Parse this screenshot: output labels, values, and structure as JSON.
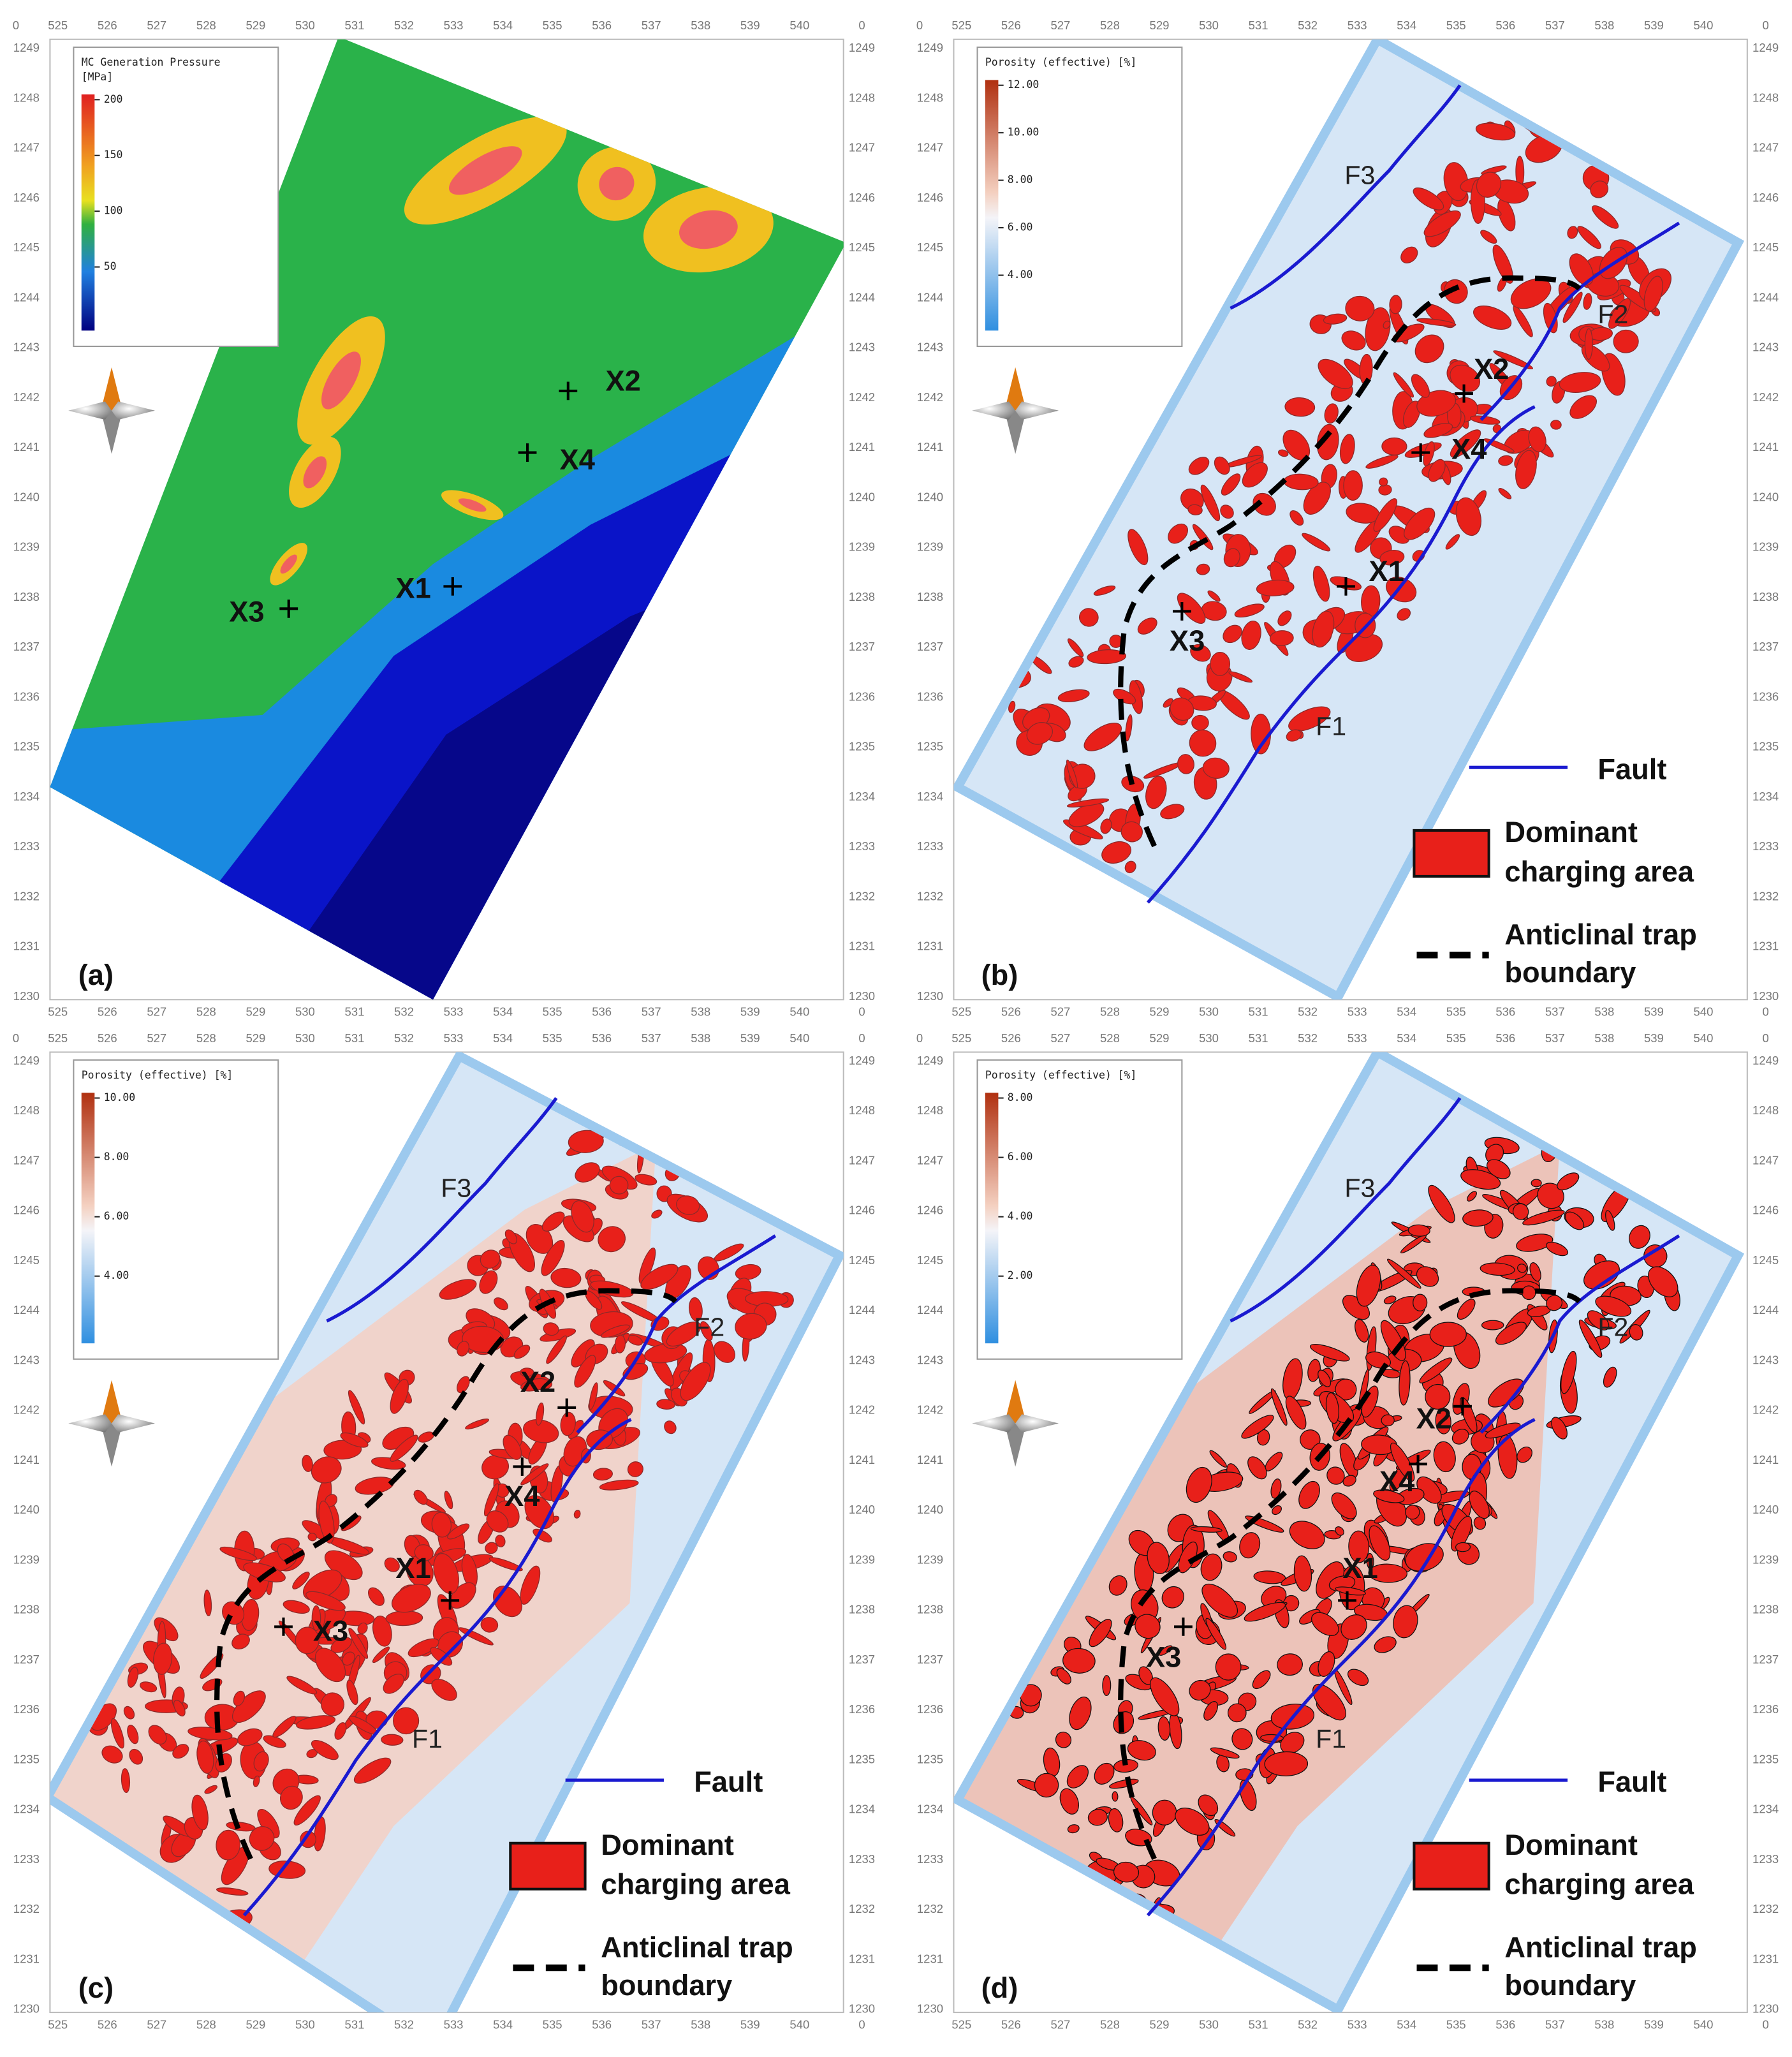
{
  "axes": {
    "x_ticks": [
      525,
      526,
      527,
      528,
      529,
      530,
      531,
      532,
      533,
      534,
      535,
      536,
      537,
      538,
      539,
      540
    ],
    "y_ticks": [
      1249,
      1248,
      1247,
      1246,
      1245,
      1244,
      1243,
      1242,
      1241,
      1240,
      1239,
      1238,
      1237,
      1236,
      1235,
      1234,
      1233,
      1232,
      1231,
      1230
    ],
    "corner_label": "0"
  },
  "legend": {
    "fault": "Fault",
    "charging_lines": [
      "Dominant",
      "charging area"
    ],
    "trap_lines": [
      "Anticlinal trap",
      "boundary"
    ]
  },
  "panels": [
    {
      "label": "(a)",
      "colorbar": {
        "title_lines": [
          "MC Generation Pressure",
          "[MPa]"
        ],
        "ticks": [
          "200",
          "150",
          "100",
          "50"
        ]
      },
      "wells": [
        "X1",
        "X2",
        "X3",
        "X4"
      ],
      "faults": []
    },
    {
      "label": "(b)",
      "colorbar": {
        "title_lines": [
          "Porosity (effective) [%]"
        ],
        "ticks": [
          "12.00",
          "10.00",
          "8.00",
          "6.00",
          "4.00"
        ]
      },
      "wells": [
        "X1",
        "X2",
        "X3",
        "X4"
      ],
      "faults": [
        "F1",
        "F2",
        "F3"
      ]
    },
    {
      "label": "(c)",
      "colorbar": {
        "title_lines": [
          "Porosity (effective) [%]"
        ],
        "ticks": [
          "10.00",
          "8.00",
          "6.00",
          "4.00"
        ]
      },
      "wells": [
        "X1",
        "X2",
        "X3",
        "X4"
      ],
      "faults": [
        "F1",
        "F2",
        "F3"
      ]
    },
    {
      "label": "(d)",
      "colorbar": {
        "title_lines": [
          "Porosity (effective) [%]"
        ],
        "ticks": [
          "8.00",
          "6.00",
          "4.00",
          "2.00"
        ]
      },
      "wells": [
        "X1",
        "X2",
        "X3",
        "X4"
      ],
      "faults": [
        "F1",
        "F2",
        "F3"
      ]
    }
  ]
}
